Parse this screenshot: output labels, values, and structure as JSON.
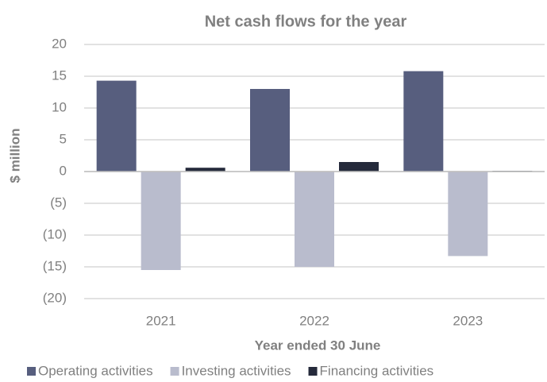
{
  "chart_data": {
    "type": "bar",
    "title": "Net cash flows for the year",
    "x_label": "Year ended 30 June",
    "y_label": "$ million",
    "categories": [
      "2021",
      "2022",
      "2023"
    ],
    "series": [
      {
        "name": "Operating activities",
        "color": "#575e7e",
        "values": [
          14.3,
          13,
          15.8
        ]
      },
      {
        "name": "Investing activities",
        "color": "#b9bccd",
        "values": [
          -15.5,
          -15,
          -13.3
        ]
      },
      {
        "name": "Financing activities",
        "color": "#252a3b",
        "values": [
          0.6,
          1.5,
          0.1
        ]
      }
    ],
    "ylim": [
      -20,
      20
    ],
    "yticks": [
      {
        "value": -20,
        "label": "(20)"
      },
      {
        "value": -15,
        "label": "(15)"
      },
      {
        "value": -10,
        "label": "(10)"
      },
      {
        "value": -5,
        "label": "(5)"
      },
      0,
      5,
      10,
      15,
      20
    ],
    "grid": true,
    "legend": "bottom"
  }
}
